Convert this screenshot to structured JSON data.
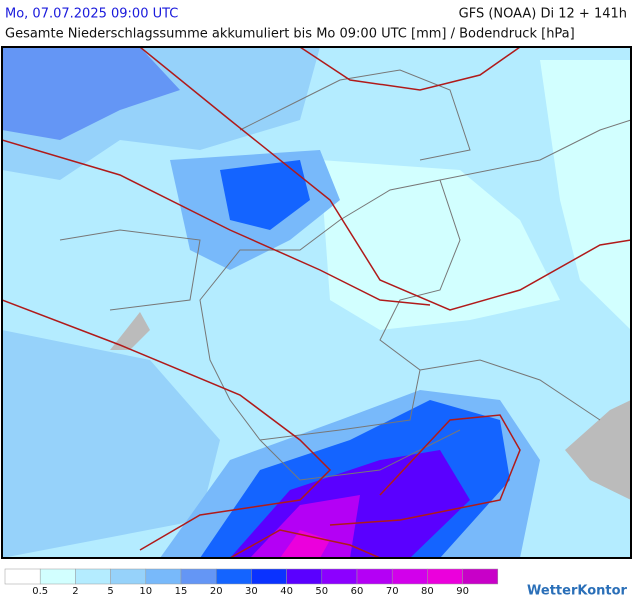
{
  "header": {
    "date": "Mo, 07.07.2025 09:00 UTC",
    "model": "GFS (NOAA) Di 12 + 141h",
    "subtitle": "Gesamte Niederschlagssumme akkumuliert bis Mo 09:00 UTC [mm] / Bodendruck [hPa]"
  },
  "legend": {
    "colors": [
      "#ffffff",
      "#d2ffff",
      "#b4ecff",
      "#96d2fa",
      "#78b9fa",
      "#6496f5",
      "#1464ff",
      "#0a32ff",
      "#5a00ff",
      "#8c00ff",
      "#b400f5",
      "#d200eb",
      "#eb00dc",
      "#c800c8"
    ],
    "labels": [
      "0.5",
      "2",
      "5",
      "10",
      "15",
      "20",
      "30",
      "40",
      "50",
      "60",
      "70",
      "80",
      "90"
    ]
  },
  "brand": "WetterKontor"
}
